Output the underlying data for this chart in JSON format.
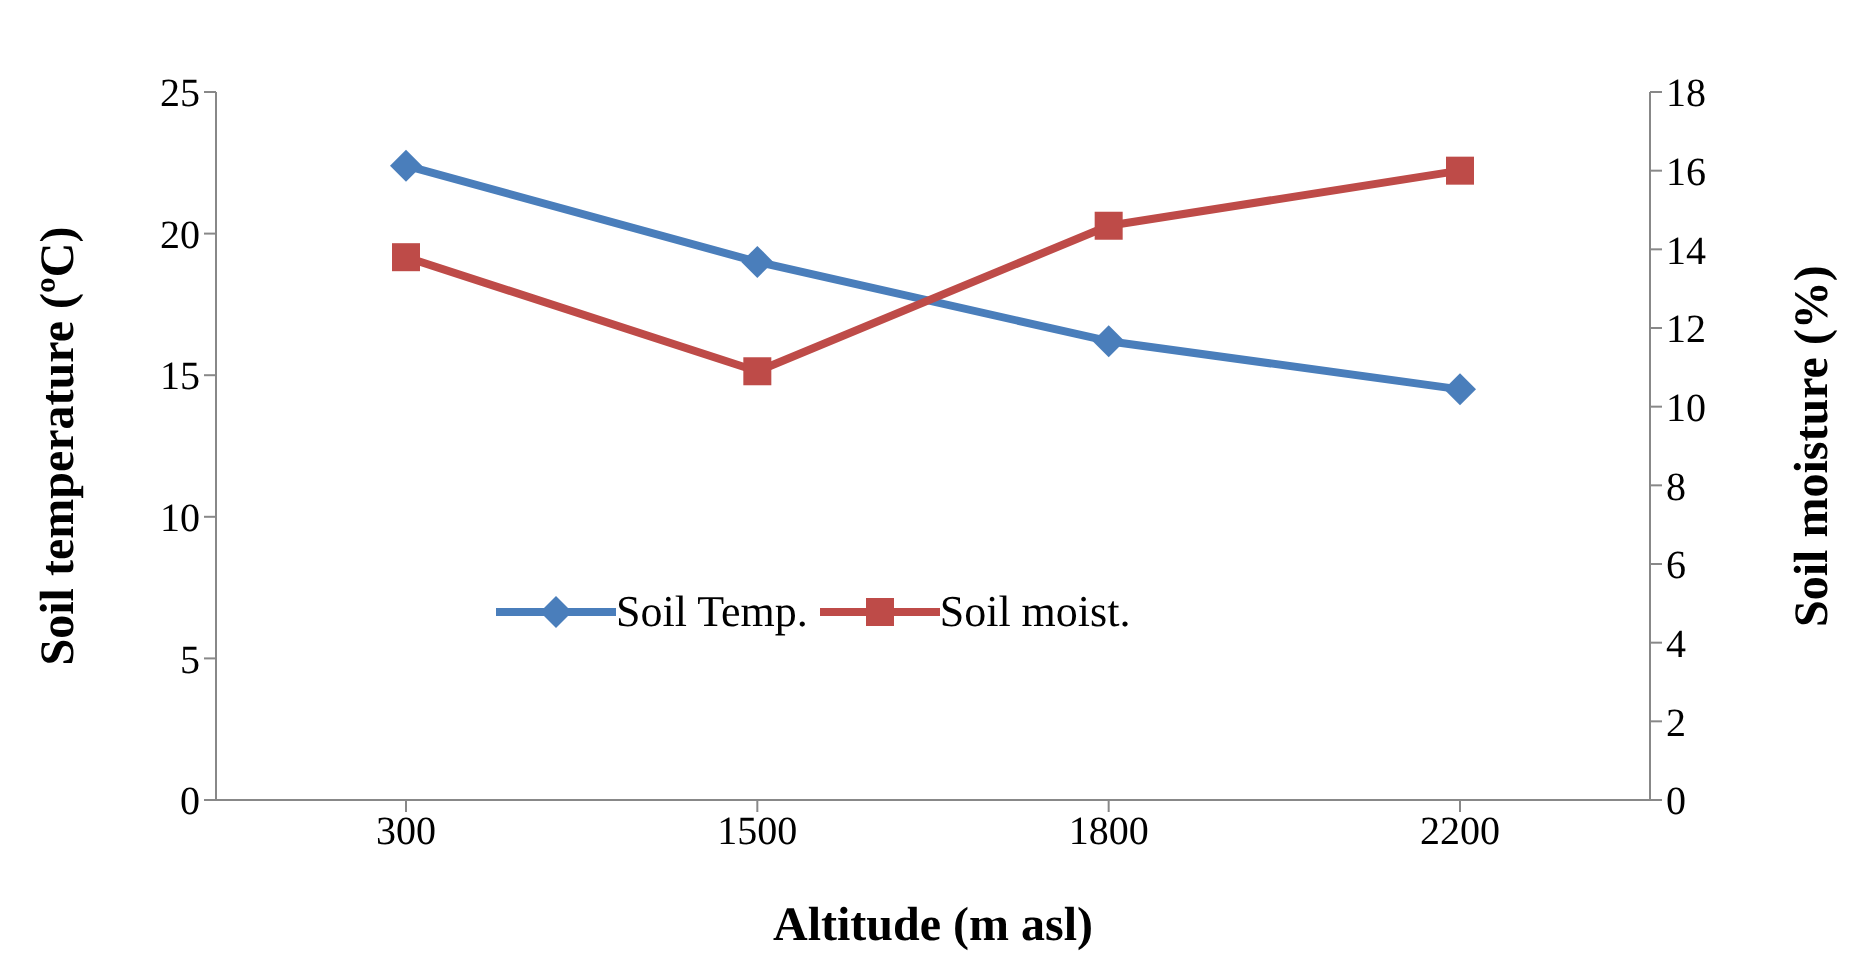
{
  "chart_data": {
    "type": "line",
    "xlabel": "Altitude (m asl)",
    "ylabel": "Soil temperature (ºC)",
    "y2label": "Soil moisture (%)",
    "categories": [
      "300",
      "1500",
      "1800",
      "2200"
    ],
    "series": [
      {
        "name": "Soil Temp.",
        "color": "#4a7ebb",
        "values": [
          22.4,
          19.0,
          16.2,
          14.5
        ],
        "marker": "diamond"
      },
      {
        "name": "Soil moist.",
        "color": "#be4b48",
        "values": [
          13.8,
          10.9,
          14.6,
          16.0
        ],
        "axis": "y2",
        "marker": "square"
      }
    ],
    "ylim": [
      0,
      25
    ],
    "yticks": [
      0,
      5,
      10,
      15,
      20,
      25
    ],
    "y2lim": [
      0,
      18
    ],
    "y2ticks": [
      0,
      2,
      4,
      6,
      8,
      10,
      12,
      14,
      16,
      18
    ],
    "grid": false,
    "legend": "center"
  }
}
